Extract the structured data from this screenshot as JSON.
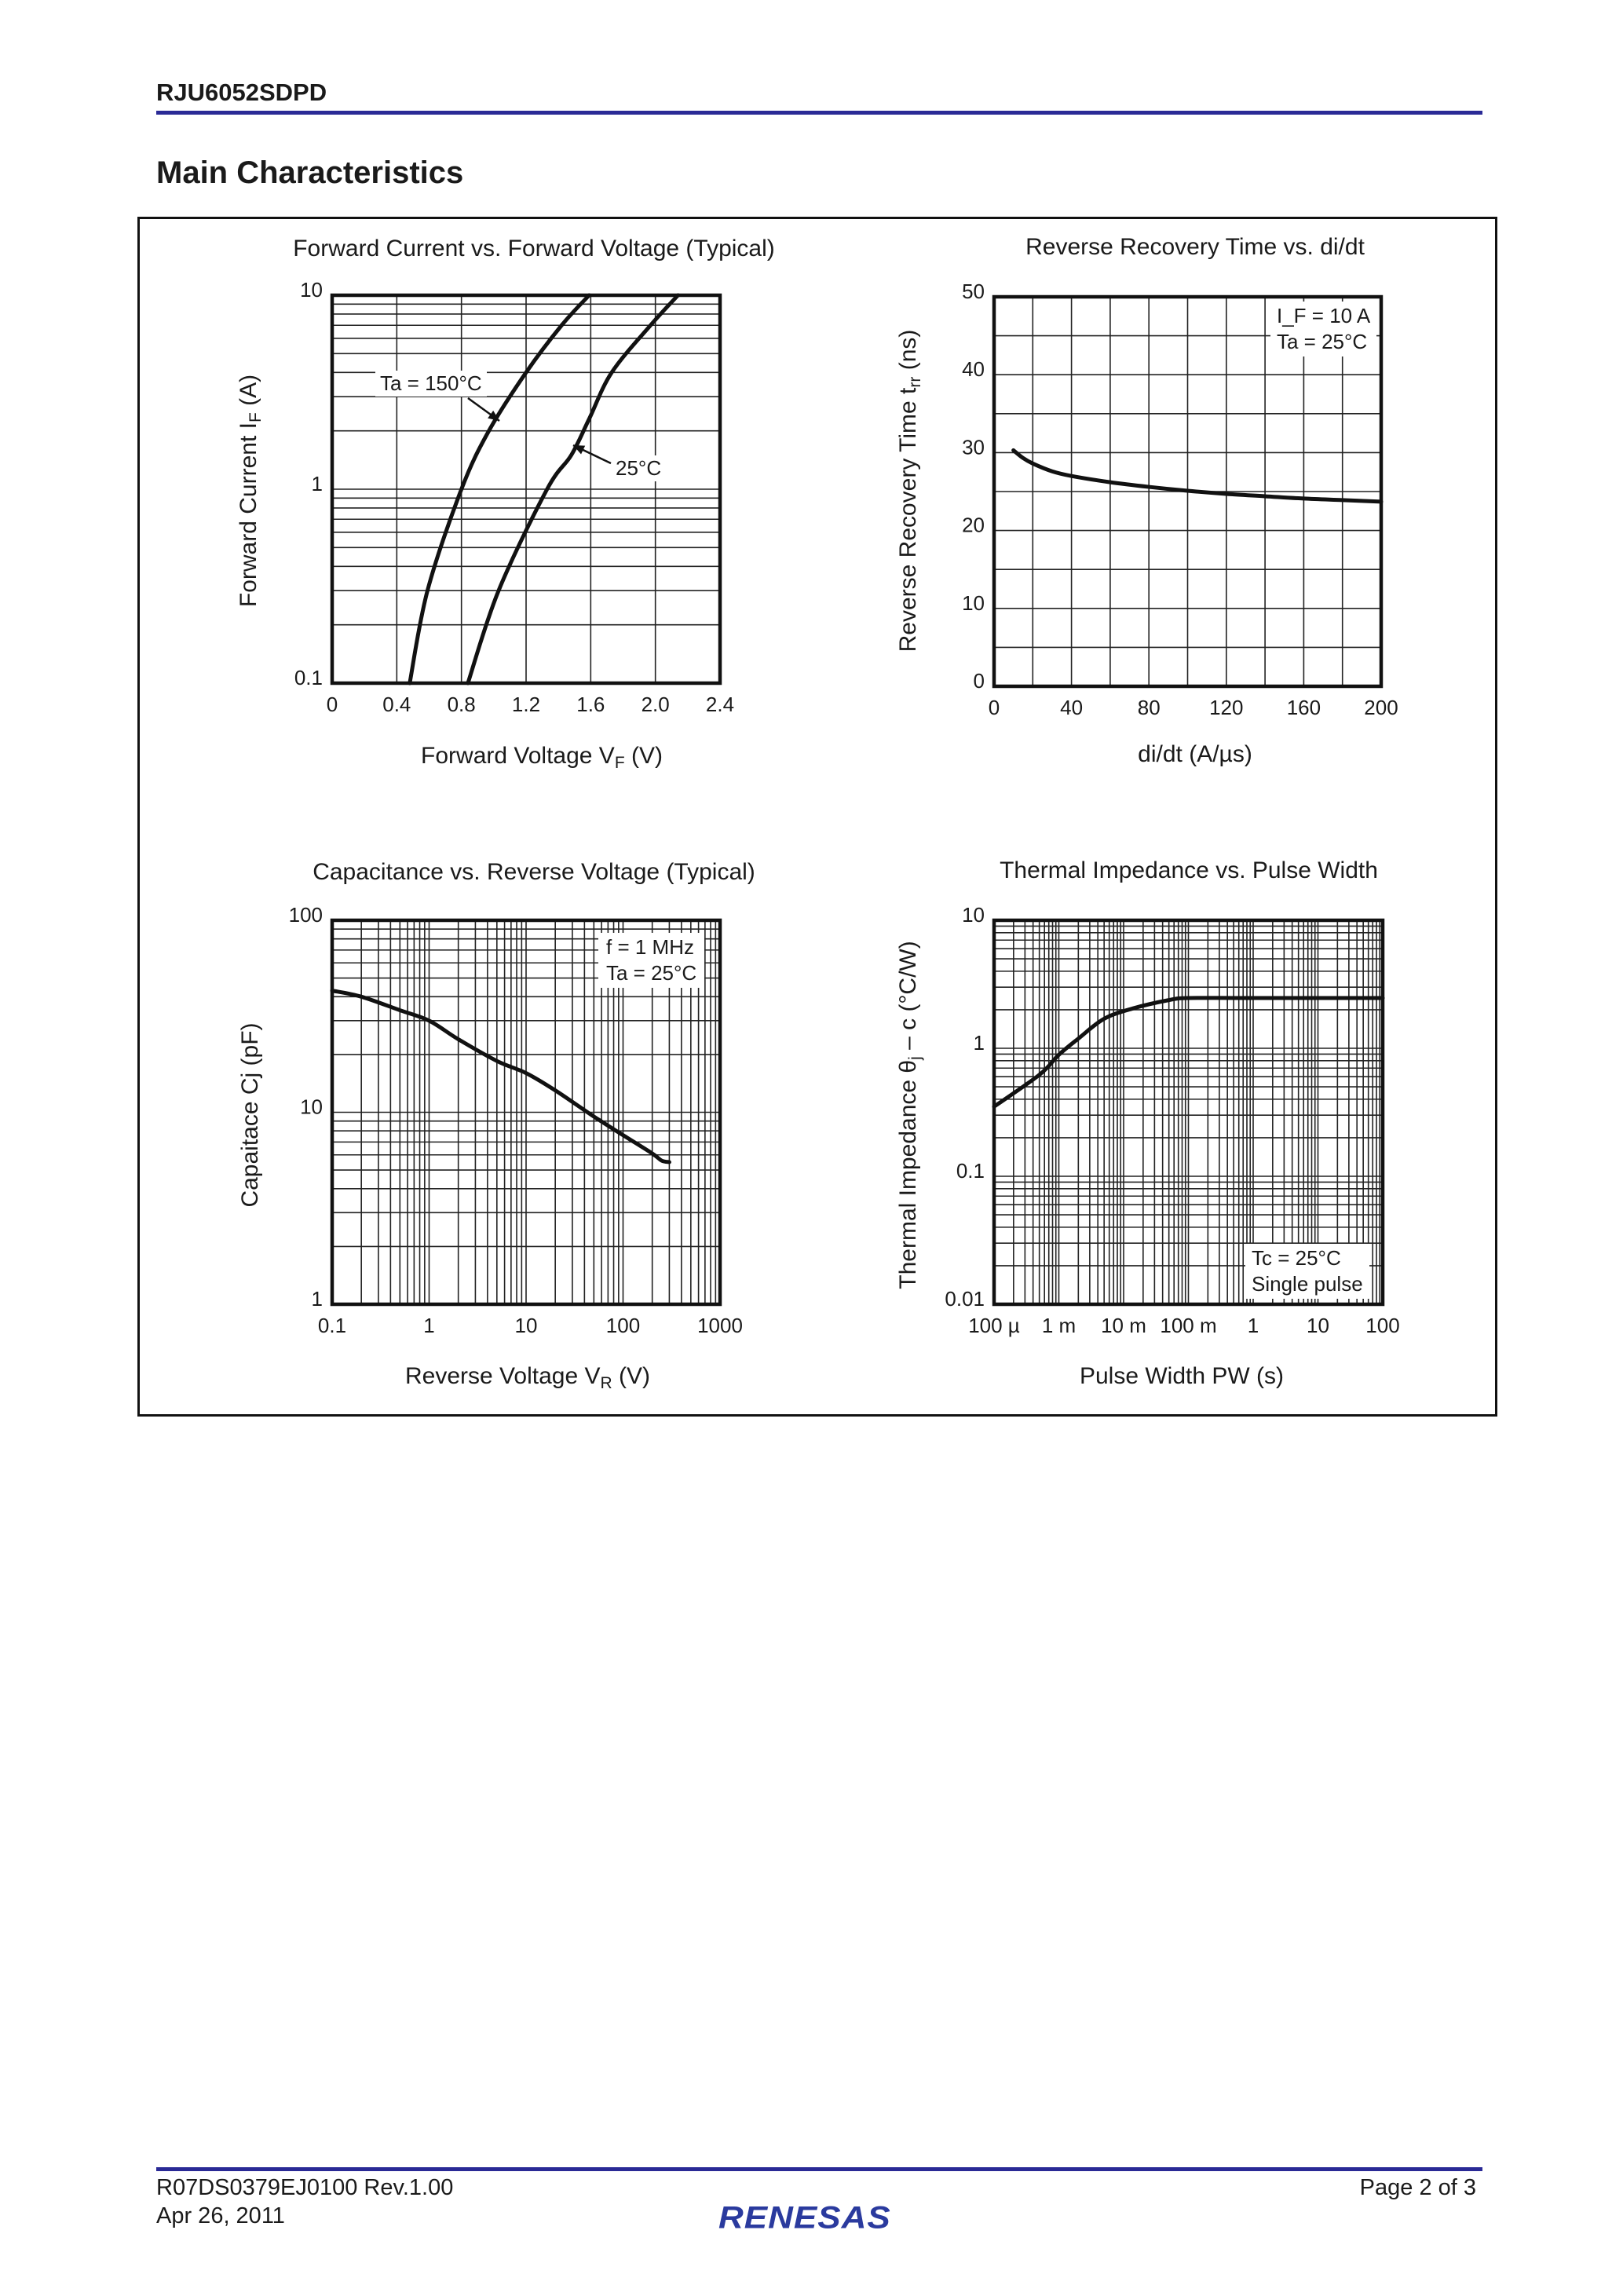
{
  "header": {
    "part_number": "RJU6052SDPD",
    "section_title": "Main Characteristics"
  },
  "footer": {
    "doc_number": "R07DS0379EJ0100  Rev.1.00",
    "date": "Apr 26, 2011",
    "page": "Page 2 of 3",
    "logo_text": "RENESAS",
    "rule_color": "#2a2a96"
  },
  "chart_data": [
    {
      "type": "line",
      "title": "Forward Current vs. Forward Voltage (Typical)",
      "xlabel": {
        "text": "Forward Voltage   V",
        "sub": "F",
        "unit": "  (V)"
      },
      "ylabel": {
        "text": "Forward Current   I",
        "sub": "F",
        "unit": "  (A)"
      },
      "xscale": "linear",
      "yscale": "log",
      "xlim": [
        0,
        2.4
      ],
      "ylim": [
        0.1,
        10
      ],
      "x_ticks": [
        {
          "v": 0,
          "label": "0"
        },
        {
          "v": 0.4,
          "label": "0.4"
        },
        {
          "v": 0.8,
          "label": "0.8"
        },
        {
          "v": 1.2,
          "label": "1.2"
        },
        {
          "v": 1.6,
          "label": "1.6"
        },
        {
          "v": 2.0,
          "label": "2.0"
        },
        {
          "v": 2.4,
          "label": "2.4"
        }
      ],
      "y_ticks": [
        {
          "v": 10,
          "label": "10"
        },
        {
          "v": 1,
          "label": "1"
        },
        {
          "v": 0.1,
          "label": "0.1"
        }
      ],
      "grid": true,
      "series": [
        {
          "name": "Ta = 150°C",
          "x": [
            0.48,
            0.59,
            0.8,
            0.97,
            1.2,
            1.42,
            1.59
          ],
          "y": [
            0.1,
            0.3,
            1,
            2,
            4,
            7,
            10
          ]
        },
        {
          "name": "25°C",
          "x": [
            0.84,
            1.03,
            1.33,
            1.48,
            1.59,
            1.73,
            1.97,
            2.14
          ],
          "y": [
            0.1,
            0.3,
            1,
            1.5,
            2.3,
            4,
            7,
            10
          ]
        }
      ]
    },
    {
      "type": "line",
      "title": "Reverse Recovery Time vs. di/dt",
      "xlabel": {
        "text": "di/dt    (A/µs)",
        "sub": "",
        "unit": ""
      },
      "ylabel": {
        "text": "Reverse Recovery Time  t",
        "sub": "rr",
        "unit": "  (ns)"
      },
      "xscale": "linear",
      "yscale": "linear",
      "xlim": [
        0,
        200
      ],
      "ylim": [
        0,
        50
      ],
      "x_ticks": [
        {
          "v": 0,
          "label": "0"
        },
        {
          "v": 40,
          "label": "40"
        },
        {
          "v": 80,
          "label": "80"
        },
        {
          "v": 120,
          "label": "120"
        },
        {
          "v": 160,
          "label": "160"
        },
        {
          "v": 200,
          "label": "200"
        }
      ],
      "y_ticks": [
        {
          "v": 0,
          "label": "0"
        },
        {
          "v": 10,
          "label": "10"
        },
        {
          "v": 20,
          "label": "20"
        },
        {
          "v": 30,
          "label": "30"
        },
        {
          "v": 40,
          "label": "40"
        },
        {
          "v": 50,
          "label": "50"
        }
      ],
      "grid": true,
      "conditions": [
        "I_F = 10 A",
        "Ta = 25°C"
      ],
      "series": [
        {
          "x": [
            10,
            15,
            20,
            30,
            40,
            60,
            80,
            100,
            120,
            140,
            160,
            180,
            200
          ],
          "y": [
            30.3,
            29.3,
            28.6,
            27.6,
            27.0,
            26.2,
            25.6,
            25.1,
            24.7,
            24.4,
            24.1,
            23.9,
            23.7
          ]
        }
      ]
    },
    {
      "type": "line",
      "title": "Capacitance vs. Reverse Voltage (Typical)",
      "xlabel": {
        "text": "Reverse Voltage   V",
        "sub": "R",
        "unit": "  (V)"
      },
      "ylabel": {
        "text": "Capaitace   Cj  (pF)",
        "sub": "",
        "unit": ""
      },
      "xscale": "log",
      "yscale": "log",
      "xlim": [
        0.1,
        1000
      ],
      "ylim": [
        1,
        100
      ],
      "x_ticks": [
        {
          "v": 0.1,
          "label": "0.1"
        },
        {
          "v": 1,
          "label": "1"
        },
        {
          "v": 10,
          "label": "10"
        },
        {
          "v": 100,
          "label": "100"
        },
        {
          "v": 1000,
          "label": "1000"
        }
      ],
      "y_ticks": [
        {
          "v": 100,
          "label": "100"
        },
        {
          "v": 10,
          "label": "10"
        },
        {
          "v": 1,
          "label": "1"
        }
      ],
      "grid": true,
      "conditions": [
        "f = 1 MHz",
        "Ta = 25°C"
      ],
      "series": [
        {
          "x": [
            0.1,
            0.2,
            0.5,
            1,
            2,
            5,
            10,
            20,
            50,
            100,
            200,
            250,
            300
          ],
          "y": [
            43,
            40,
            34,
            30,
            24,
            18.5,
            16,
            13,
            9.5,
            7.6,
            6.1,
            5.6,
            5.5
          ]
        }
      ]
    },
    {
      "type": "line",
      "title": "Thermal Impedance vs. Pulse Width",
      "xlabel": {
        "text": "Pulse Width    PW   (s)",
        "sub": "",
        "unit": ""
      },
      "ylabel": {
        "text": "Thermal Impedance    θ",
        "sub": "j",
        "unit": " – c  (°C/W)"
      },
      "xscale": "log",
      "yscale": "log",
      "xlim": [
        0.0001,
        100
      ],
      "ylim": [
        0.01,
        10
      ],
      "x_ticks": [
        {
          "v": 0.0001,
          "label": "100 µ"
        },
        {
          "v": 0.001,
          "label": "1 m"
        },
        {
          "v": 0.01,
          "label": "10 m"
        },
        {
          "v": 0.1,
          "label": "100 m"
        },
        {
          "v": 1,
          "label": "1"
        },
        {
          "v": 10,
          "label": "10"
        },
        {
          "v": 100,
          "label": "100"
        }
      ],
      "y_ticks": [
        {
          "v": 10,
          "label": "10"
        },
        {
          "v": 1,
          "label": "1"
        },
        {
          "v": 0.1,
          "label": "0.1"
        },
        {
          "v": 0.01,
          "label": "0.01"
        }
      ],
      "grid": true,
      "conditions": [
        "Tc = 25°C",
        "Single pulse"
      ],
      "series": [
        {
          "x": [
            0.0001,
            0.0005,
            0.001,
            0.002,
            0.005,
            0.014,
            0.05,
            0.1,
            1,
            100
          ],
          "y": [
            0.35,
            0.62,
            0.89,
            1.19,
            1.7,
            2.05,
            2.38,
            2.47,
            2.47,
            2.47
          ]
        }
      ]
    }
  ]
}
